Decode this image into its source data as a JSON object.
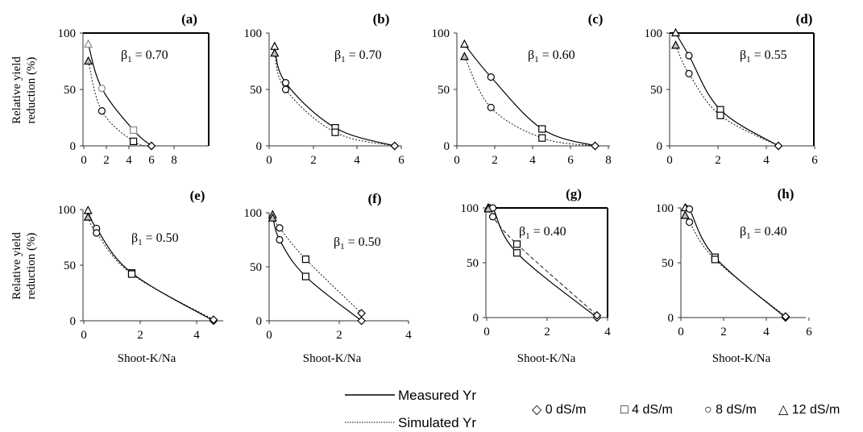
{
  "shared": {
    "ylabel_line1": "Relative yield",
    "ylabel_line2": "reduction (%)",
    "xlabel": "Shoot-K/Na",
    "beta_prefix": "β",
    "beta_sub": "1",
    "yticks": [
      "0",
      "50",
      "100"
    ]
  },
  "legend": {
    "measured": "Measured Yr",
    "simulated": "Simulated Yr",
    "markers": [
      "◇ 0 dS/m",
      "□ 4 dS/m",
      "○ 8 dS/m",
      "△ 12 dS/m"
    ]
  },
  "colors": {
    "line": "#000000",
    "hollow_marker": "#8a8a8a"
  },
  "chart_data": [
    {
      "panel": "(a)",
      "type": "scatter",
      "beta": "= 0.70",
      "xlim": [
        0,
        8
      ],
      "ylim": [
        0,
        100
      ],
      "xticks": [
        0,
        2,
        4,
        6,
        8
      ],
      "yticks": [
        0,
        50,
        100
      ],
      "measured": [
        {
          "x": 0.4,
          "y": 90
        },
        {
          "x": 1.6,
          "y": 51
        },
        {
          "x": 4.4,
          "y": 14
        },
        {
          "x": 6.0,
          "y": 0
        }
      ],
      "simulated": [
        {
          "x": 0.4,
          "y": 75
        },
        {
          "x": 1.6,
          "y": 31
        },
        {
          "x": 4.4,
          "y": 4
        },
        {
          "x": 6.0,
          "y": 0
        }
      ]
    },
    {
      "panel": "(b)",
      "type": "scatter",
      "beta": "= 0.70",
      "xlim": [
        0,
        6
      ],
      "ylim": [
        0,
        100
      ],
      "xticks": [
        0,
        2,
        4,
        6
      ],
      "yticks": [
        0,
        50,
        100
      ],
      "measured": [
        {
          "x": 0.25,
          "y": 88
        },
        {
          "x": 0.75,
          "y": 56
        },
        {
          "x": 3.0,
          "y": 16
        },
        {
          "x": 5.7,
          "y": 0
        }
      ],
      "simulated": [
        {
          "x": 0.25,
          "y": 82
        },
        {
          "x": 0.75,
          "y": 50
        },
        {
          "x": 3.0,
          "y": 12
        },
        {
          "x": 5.7,
          "y": 0
        }
      ]
    },
    {
      "panel": "(c)",
      "type": "scatter",
      "beta": "= 0.60",
      "xlim": [
        0,
        8
      ],
      "ylim": [
        0,
        100
      ],
      "xticks": [
        0,
        2,
        4,
        6,
        8
      ],
      "yticks": [
        0,
        50,
        100
      ],
      "measured": [
        {
          "x": 0.4,
          "y": 90
        },
        {
          "x": 1.8,
          "y": 61
        },
        {
          "x": 4.5,
          "y": 15
        },
        {
          "x": 7.3,
          "y": 0
        }
      ],
      "simulated": [
        {
          "x": 0.4,
          "y": 79
        },
        {
          "x": 1.8,
          "y": 34
        },
        {
          "x": 4.5,
          "y": 7
        },
        {
          "x": 7.3,
          "y": 0
        }
      ]
    },
    {
      "panel": "(d)",
      "type": "scatter",
      "beta": "= 0.55",
      "xlim": [
        0,
        6
      ],
      "ylim": [
        0,
        100
      ],
      "xticks": [
        0,
        2,
        4,
        6
      ],
      "yticks": [
        0,
        50,
        100
      ],
      "measured": [
        {
          "x": 0.25,
          "y": 100
        },
        {
          "x": 0.8,
          "y": 80
        },
        {
          "x": 2.1,
          "y": 32
        },
        {
          "x": 4.5,
          "y": 0
        }
      ],
      "simulated": [
        {
          "x": 0.25,
          "y": 89
        },
        {
          "x": 0.8,
          "y": 64
        },
        {
          "x": 2.1,
          "y": 27
        },
        {
          "x": 4.5,
          "y": 0
        }
      ]
    },
    {
      "panel": "(e)",
      "type": "scatter",
      "beta": "= 0.50",
      "xlim": [
        0,
        5
      ],
      "ylim": [
        0,
        100
      ],
      "xticks": [
        0,
        2,
        4
      ],
      "yticks": [
        0,
        50,
        100
      ],
      "measured": [
        {
          "x": 0.15,
          "y": 99
        },
        {
          "x": 0.45,
          "y": 83
        },
        {
          "x": 1.7,
          "y": 43
        },
        {
          "x": 4.6,
          "y": 0
        }
      ],
      "simulated": [
        {
          "x": 0.15,
          "y": 93
        },
        {
          "x": 0.45,
          "y": 79
        },
        {
          "x": 1.7,
          "y": 42
        },
        {
          "x": 4.6,
          "y": 1
        }
      ]
    },
    {
      "panel": "(f)",
      "type": "scatter",
      "beta": "= 0.50",
      "xlim": [
        0,
        4
      ],
      "ylim": [
        0,
        100
      ],
      "xticks": [
        0,
        2,
        4
      ],
      "yticks": [
        0,
        50,
        100
      ],
      "measured": [
        {
          "x": 0.1,
          "y": 98
        },
        {
          "x": 0.3,
          "y": 75
        },
        {
          "x": 1.05,
          "y": 41
        },
        {
          "x": 2.65,
          "y": 0
        }
      ],
      "simulated": [
        {
          "x": 0.1,
          "y": 95
        },
        {
          "x": 0.3,
          "y": 86
        },
        {
          "x": 1.05,
          "y": 57
        },
        {
          "x": 2.65,
          "y": 7
        }
      ]
    },
    {
      "panel": "(g)",
      "type": "scatter",
      "beta": "= 0.40",
      "xlim": [
        0,
        4
      ],
      "ylim": [
        0,
        100
      ],
      "xticks": [
        0,
        2,
        4
      ],
      "yticks": [
        0,
        50,
        100
      ],
      "measured": [
        {
          "x": 0.05,
          "y": 100
        },
        {
          "x": 0.2,
          "y": 100
        },
        {
          "x": 1.0,
          "y": 59
        },
        {
          "x": 3.65,
          "y": 0
        }
      ],
      "simulated": [
        {
          "x": 0.05,
          "y": 99
        },
        {
          "x": 0.2,
          "y": 92
        },
        {
          "x": 1.0,
          "y": 67
        },
        {
          "x": 3.65,
          "y": 2
        }
      ]
    },
    {
      "panel": "(h)",
      "type": "scatter",
      "beta": "= 0.40",
      "xlim": [
        0,
        6
      ],
      "ylim": [
        0,
        100
      ],
      "xticks": [
        0,
        2,
        4,
        6
      ],
      "yticks": [
        0,
        50,
        100
      ],
      "measured": [
        {
          "x": 0.2,
          "y": 100
        },
        {
          "x": 0.4,
          "y": 99
        },
        {
          "x": 1.6,
          "y": 55
        },
        {
          "x": 4.9,
          "y": 0
        }
      ],
      "simulated": [
        {
          "x": 0.2,
          "y": 93
        },
        {
          "x": 0.4,
          "y": 87
        },
        {
          "x": 1.6,
          "y": 53
        },
        {
          "x": 4.9,
          "y": 1
        }
      ]
    }
  ]
}
